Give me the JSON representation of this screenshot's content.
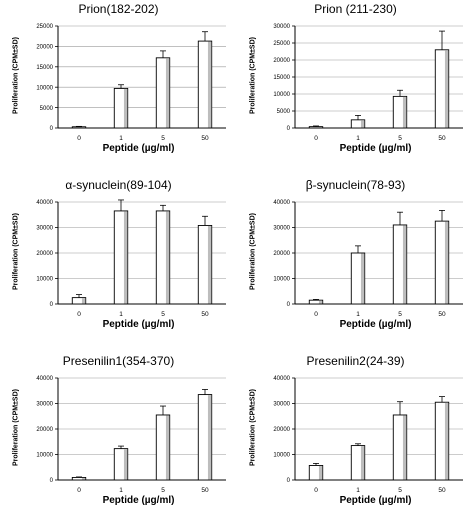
{
  "chart_data": [
    {
      "type": "bar",
      "title": "Prion(182-202)",
      "xlabel": "Peptide (µg/ml)",
      "ylabel": "Proliferation (CPM±SD)",
      "categories": [
        "0",
        "1",
        "5",
        "50"
      ],
      "values": [
        300,
        9700,
        17200,
        21300
      ],
      "errors": [
        100,
        900,
        1700,
        2300
      ],
      "ylim": [
        0,
        25000
      ],
      "yticks": [
        0,
        5000,
        10000,
        15000,
        20000,
        25000
      ],
      "grid": true
    },
    {
      "type": "bar",
      "title": "Prion  (211-230)",
      "xlabel": "Peptide (µg/ml)",
      "ylabel": "Proliferation (CPM±SD)",
      "categories": [
        "0",
        "1",
        "5",
        "50"
      ],
      "values": [
        400,
        2400,
        9300,
        23000
      ],
      "errors": [
        200,
        1300,
        1800,
        5500
      ],
      "ylim": [
        0,
        30000
      ],
      "yticks": [
        0,
        5000,
        10000,
        15000,
        20000,
        25000,
        30000
      ],
      "grid": true
    },
    {
      "type": "bar",
      "title": "α-synuclein(89-104)",
      "xlabel": "Peptide (µg/ml)",
      "ylabel": "Proliferation (CPM±SD)",
      "categories": [
        "0",
        "1",
        "5",
        "50"
      ],
      "values": [
        2500,
        36500,
        36500,
        30800
      ],
      "errors": [
        1200,
        4300,
        2200,
        3600
      ],
      "ylim": [
        0,
        40000
      ],
      "yticks": [
        0,
        10000,
        20000,
        30000,
        40000
      ],
      "grid": true
    },
    {
      "type": "bar",
      "title": "β-synuclein(78-93)",
      "xlabel": "Peptide (µg/ml)",
      "ylabel": "Proliferation (CPM±SD)",
      "categories": [
        "0",
        "1",
        "5",
        "50"
      ],
      "values": [
        1500,
        20000,
        31000,
        32500
      ],
      "errors": [
        300,
        2800,
        5000,
        4200
      ],
      "ylim": [
        0,
        40000
      ],
      "yticks": [
        0,
        10000,
        20000,
        30000,
        40000
      ],
      "grid": true
    },
    {
      "type": "bar",
      "title": "Presenilin1(354-370)",
      "xlabel": "Peptide (µg/ml)",
      "ylabel": "Proliferation (CPM±SD)",
      "categories": [
        "0",
        "1",
        "5",
        "50"
      ],
      "values": [
        1000,
        12300,
        25500,
        33500
      ],
      "errors": [
        200,
        1000,
        3500,
        2000
      ],
      "ylim": [
        0,
        40000
      ],
      "yticks": [
        0,
        10000,
        20000,
        30000,
        40000
      ],
      "grid": true
    },
    {
      "type": "bar",
      "title": "Presenilin2(24-39)",
      "xlabel": "Peptide (µg/ml)",
      "ylabel": "Proliferation (CPM±SD)",
      "categories": [
        "0",
        "1",
        "5",
        "50"
      ],
      "values": [
        5700,
        13500,
        25500,
        30500
      ],
      "errors": [
        800,
        700,
        5200,
        2200
      ],
      "ylim": [
        0,
        40000
      ],
      "yticks": [
        0,
        10000,
        20000,
        30000,
        40000
      ],
      "grid": true
    }
  ]
}
